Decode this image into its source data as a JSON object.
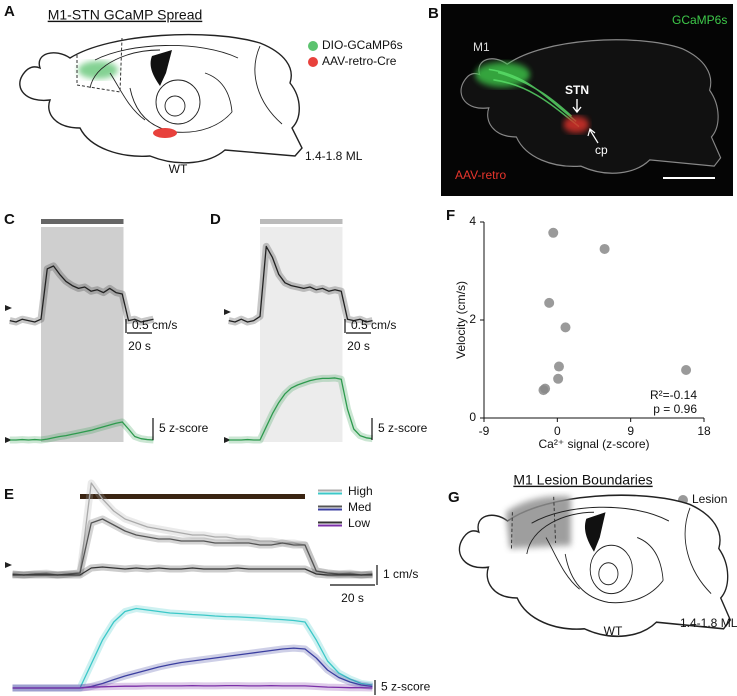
{
  "panels": {
    "a": {
      "label": "A",
      "title": "M1-STN GCaMP Spread",
      "legend": [
        "DIO-GCaMP6s",
        "AAV-retro-Cre"
      ],
      "genotype": "WT",
      "ml": "1.4-1.8 ML"
    },
    "b": {
      "label": "B",
      "labels": [
        "GCaMP6s",
        "M1",
        "STN",
        "cp",
        "AAV-retro"
      ]
    },
    "g": {
      "label": "G",
      "title": "M1 Lesion Boundaries",
      "legend": [
        "Lesion"
      ],
      "genotype": "WT",
      "ml": "1.4-1.8 ML"
    }
  },
  "chart_data": [
    {
      "type": "line",
      "label": "C",
      "x": [
        -25,
        -20,
        -15,
        -10,
        -5,
        0,
        5,
        10,
        15,
        20,
        25,
        30,
        35,
        40,
        45,
        50,
        55,
        60,
        65,
        70,
        75,
        80,
        85,
        90
      ],
      "stimulus": [
        0,
        66
      ],
      "stimulus_color": "#666666",
      "series": [
        {
          "color": "#222222",
          "values": [
            0.05,
            0,
            0.1,
            0.05,
            0,
            0.1,
            1.9,
            2.0,
            1.7,
            1.45,
            1.3,
            1.2,
            1.25,
            1.1,
            1.15,
            1.05,
            1.2,
            1.05,
            1.0,
            0.05,
            0.1,
            0,
            0.05,
            0.1
          ]
        },
        {
          "color": "#2e9a4e",
          "axis": "y2",
          "values": [
            0,
            0,
            0.1,
            0,
            0.1,
            0,
            0.2,
            0.5,
            0.8,
            1.0,
            1.3,
            1.6,
            1.9,
            2.2,
            2.6,
            3.0,
            3.4,
            3.8,
            4.1,
            2.5,
            0.8,
            0.3,
            0.1,
            0
          ]
        }
      ],
      "x_scale_bar": {
        "value": 20,
        "label": "20 s"
      },
      "y_scale_bar": {
        "value": 0.5,
        "label": "0.5 cm/s"
      },
      "y2_scale_bar": {
        "value": 5,
        "label": "5 z-score"
      }
    },
    {
      "type": "line",
      "label": "D",
      "x": [
        -25,
        -20,
        -15,
        -10,
        -5,
        0,
        5,
        10,
        15,
        20,
        25,
        30,
        35,
        40,
        45,
        50,
        55,
        60,
        65,
        70,
        75,
        80,
        85,
        90
      ],
      "stimulus": [
        0,
        66
      ],
      "stimulus_color": "#bbbbbb",
      "series": [
        {
          "color": "#222222",
          "values": [
            0.05,
            0,
            0.1,
            0,
            0.05,
            0.2,
            2.7,
            2.3,
            1.7,
            1.4,
            1.3,
            1.25,
            1.2,
            1.25,
            1.15,
            1.2,
            1.1,
            1.15,
            1.1,
            0.1,
            0.05,
            0.1,
            0,
            0.05
          ]
        },
        {
          "color": "#2e9a4e",
          "axis": "y2",
          "values": [
            0,
            0,
            0,
            0.1,
            0,
            0,
            3,
            6,
            8.5,
            10.5,
            11.8,
            12.5,
            13,
            13.5,
            13.8,
            14,
            14,
            14.1,
            13.8,
            7,
            2.5,
            1,
            0.5,
            0.3
          ]
        }
      ],
      "x_scale_bar": {
        "value": 20,
        "label": "20 s"
      },
      "y_scale_bar": {
        "value": 0.5,
        "label": "0.5 cm/s"
      },
      "y2_scale_bar": {
        "value": 5,
        "label": "5 z-score"
      }
    },
    {
      "type": "line",
      "label": "E",
      "x": [
        -30,
        -25,
        -20,
        -15,
        -10,
        -5,
        0,
        5,
        10,
        15,
        20,
        25,
        30,
        35,
        40,
        45,
        50,
        55,
        60,
        65,
        70,
        75,
        80,
        85,
        90,
        95,
        100,
        105,
        110,
        115,
        120,
        125,
        130
      ],
      "stimulus": [
        0,
        100
      ],
      "stimulus_color": "#3a2412",
      "series": [
        {
          "color": "#aaaaaa",
          "values": [
            0.05,
            0,
            0.05,
            0.1,
            0,
            0.05,
            0.1,
            4.6,
            3.8,
            3.2,
            2.8,
            2.6,
            2.4,
            2.3,
            2.2,
            2.1,
            2.0,
            2.0,
            1.9,
            1.9,
            1.8,
            1.8,
            1.7,
            1.7,
            1.6,
            1.6,
            1.5,
            0.2,
            0.1,
            0.05,
            0.1,
            0,
            0.05
          ]
        },
        {
          "color": "#555555",
          "values": [
            0.05,
            0,
            0.05,
            0.05,
            0,
            0.05,
            0.1,
            2.6,
            2.8,
            2.5,
            2.2,
            2.0,
            1.9,
            1.8,
            1.8,
            1.7,
            1.7,
            1.7,
            1.6,
            1.6,
            1.6,
            1.6,
            1.5,
            1.5,
            1.6,
            1.5,
            1.5,
            0.2,
            0.1,
            0.05,
            0.05,
            0,
            0.05
          ]
        },
        {
          "color": "#333333",
          "values": [
            0,
            0,
            0,
            0,
            0,
            0,
            0,
            0.35,
            0.4,
            0.35,
            0.3,
            0.35,
            0.3,
            0.35,
            0.3,
            0.3,
            0.35,
            0.3,
            0.3,
            0.3,
            0.35,
            0.3,
            0.3,
            0.3,
            0.3,
            0.3,
            0.3,
            0.05,
            0,
            0,
            0,
            0,
            0
          ]
        },
        {
          "name": "High",
          "color": "#3cc8c8",
          "axis": "y2",
          "values": [
            0,
            0,
            0,
            0,
            0,
            0,
            0,
            8,
            16,
            22,
            25.5,
            26.5,
            26,
            25.5,
            25,
            24.8,
            24.5,
            24.3,
            24,
            23.8,
            23.7,
            23.5,
            23.3,
            23,
            22.8,
            22.5,
            22,
            16,
            9,
            5,
            3,
            1.5,
            1
          ]
        },
        {
          "name": "Med",
          "color": "#3b3fa0",
          "axis": "y2",
          "values": [
            0,
            0,
            0,
            0,
            0,
            0,
            0,
            0.5,
            1.5,
            2.8,
            4,
            5,
            6,
            7,
            7.8,
            8.5,
            9,
            9.5,
            10,
            10.5,
            11,
            11.5,
            12,
            12.5,
            13,
            13.3,
            13,
            10,
            6,
            3.5,
            2,
            1,
            0.5
          ]
        },
        {
          "name": "Low",
          "color": "#7b2fa8",
          "axis": "y2",
          "values": [
            0,
            0,
            0,
            0,
            0,
            0,
            0,
            0.3,
            0.4,
            0.5,
            0.6,
            0.6,
            0.7,
            0.7,
            0.7,
            0.7,
            0.8,
            0.7,
            0.7,
            0.8,
            0.8,
            0.7,
            0.7,
            0.8,
            0.7,
            0.7,
            0.7,
            0.5,
            0.3,
            0.2,
            0.1,
            0.1,
            0
          ]
        }
      ],
      "x_scale_bar": {
        "value": 20,
        "label": "20 s"
      },
      "y_scale_bar": {
        "value": 1,
        "label": "1 cm/s"
      },
      "y2_scale_bar": {
        "value": 5,
        "label": "5 z-score"
      }
    },
    {
      "type": "scatter",
      "label": "F",
      "x": [
        -0.5,
        5.8,
        -1,
        1,
        0.2,
        0.1,
        -1.5,
        -1.7,
        15.8
      ],
      "values": [
        3.78,
        3.45,
        2.35,
        1.85,
        1.05,
        0.8,
        0.6,
        0.57,
        0.98
      ],
      "color": "#888888",
      "xlim": [
        -9,
        18
      ],
      "xticks": [
        -9,
        0,
        9,
        18
      ],
      "ylim": [
        0,
        4
      ],
      "yticks": [
        0,
        2,
        4
      ],
      "xlabel": "Ca²⁺ signal (z-score)",
      "ylabel": "Velocity (cm/s)",
      "annotations": [
        "R²=-0.14",
        "p = 0.96"
      ]
    }
  ]
}
